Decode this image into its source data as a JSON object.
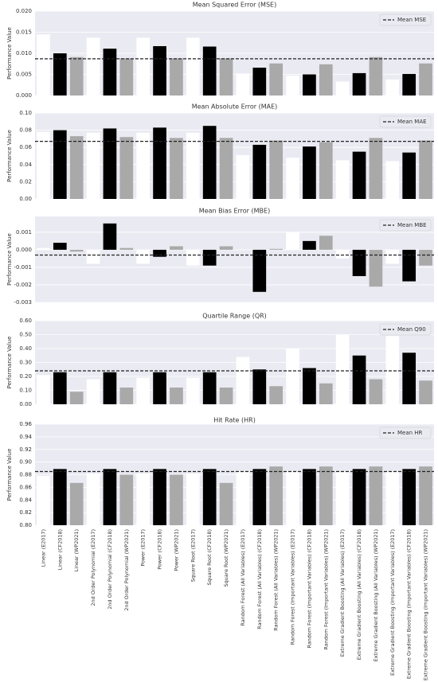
{
  "chart_data": [
    {
      "type": "bar",
      "title": "Mean Squared Error (MSE)",
      "ylabel": "Performance Value",
      "values": [
        0.0145,
        0.01,
        0.0091,
        0.0137,
        0.0111,
        0.0088,
        0.0137,
        0.0117,
        0.0088,
        0.0137,
        0.0116,
        0.0088,
        0.0052,
        0.0066,
        0.0076,
        0.0047,
        0.005,
        0.0074,
        0.0033,
        0.0053,
        0.0091,
        0.0038,
        0.0051,
        0.0076
      ],
      "colors": [
        "#ffffff",
        "#000000",
        "#a9a9a9",
        "#ffffff",
        "#000000",
        "#a9a9a9",
        "#ffffff",
        "#000000",
        "#a9a9a9",
        "#ffffff",
        "#000000",
        "#a9a9a9",
        "#ffffff",
        "#000000",
        "#a9a9a9",
        "#ffffff",
        "#000000",
        "#a9a9a9",
        "#ffffff",
        "#000000",
        "#a9a9a9",
        "#ffffff",
        "#000000",
        "#a9a9a9"
      ],
      "mean": 0.0087,
      "mean_label": "Mean MSE",
      "legend": "upper right",
      "grid": true,
      "ylim": [
        0,
        0.02
      ],
      "yticks": [
        {
          "value": 0,
          "label": "0.000"
        },
        {
          "value": 0.005,
          "label": "0.005"
        },
        {
          "value": 0.01,
          "label": "0.010"
        },
        {
          "value": 0.015,
          "label": "0.015"
        },
        {
          "value": 0.02,
          "label": "0.020"
        }
      ]
    },
    {
      "type": "bar",
      "title": "Mean Absolute Error (MAE)",
      "ylabel": "Performance Value",
      "values": [
        0.078,
        0.08,
        0.073,
        0.077,
        0.082,
        0.072,
        0.077,
        0.083,
        0.071,
        0.077,
        0.085,
        0.071,
        0.051,
        0.063,
        0.068,
        0.048,
        0.061,
        0.066,
        0.045,
        0.055,
        0.071,
        0.044,
        0.054,
        0.068
      ],
      "colors": [
        "#ffffff",
        "#000000",
        "#a9a9a9",
        "#ffffff",
        "#000000",
        "#a9a9a9",
        "#ffffff",
        "#000000",
        "#a9a9a9",
        "#ffffff",
        "#000000",
        "#a9a9a9",
        "#ffffff",
        "#000000",
        "#a9a9a9",
        "#ffffff",
        "#000000",
        "#a9a9a9",
        "#ffffff",
        "#000000",
        "#a9a9a9",
        "#ffffff",
        "#000000",
        "#a9a9a9"
      ],
      "mean": 0.067,
      "mean_label": "Mean MAE",
      "legend": "upper right",
      "grid": true,
      "ylim": [
        0,
        0.1
      ],
      "yticks": [
        {
          "value": 0,
          "label": "0.00"
        },
        {
          "value": 0.02,
          "label": "0.02"
        },
        {
          "value": 0.04,
          "label": "0.04"
        },
        {
          "value": 0.06,
          "label": "0.06"
        },
        {
          "value": 0.08,
          "label": "0.08"
        },
        {
          "value": 0.1,
          "label": "0.10"
        }
      ]
    },
    {
      "type": "bar",
      "title": "Mean Bias Error (MBE)",
      "ylabel": "Performance Value",
      "values": [
        0.0001,
        0.0004,
        -0.0001,
        -0.0008,
        0.0015,
        0.0001,
        -0.0008,
        -0.0004,
        0.0002,
        -0.0009,
        -0.0009,
        0.0002,
        0.0,
        -0.0024,
        5e-05,
        0.001,
        0.0005,
        0.0008,
        -0.0005,
        -0.0015,
        -0.0021,
        -0.0008,
        -0.0018,
        -0.0009
      ],
      "colors": [
        "#ffffff",
        "#000000",
        "#a9a9a9",
        "#ffffff",
        "#000000",
        "#a9a9a9",
        "#ffffff",
        "#000000",
        "#a9a9a9",
        "#ffffff",
        "#000000",
        "#a9a9a9",
        "#ffffff",
        "#000000",
        "#a9a9a9",
        "#ffffff",
        "#000000",
        "#a9a9a9",
        "#ffffff",
        "#000000",
        "#a9a9a9",
        "#ffffff",
        "#000000",
        "#a9a9a9"
      ],
      "mean": -0.0003,
      "mean_label": "Mean MBE",
      "legend": "upper right",
      "grid": true,
      "ylim": [
        -0.003,
        0.0019
      ],
      "yticks": [
        {
          "value": -0.003,
          "label": "-0.003"
        },
        {
          "value": -0.002,
          "label": "-0.002"
        },
        {
          "value": -0.001,
          "label": "-0.001"
        },
        {
          "value": 0,
          "label": "0.000"
        },
        {
          "value": 0.001,
          "label": "0.001"
        }
      ]
    },
    {
      "type": "bar",
      "title": "Quartile Range (QR)",
      "ylabel": "Performance Value",
      "values": [
        0.21,
        0.23,
        0.09,
        0.18,
        0.23,
        0.12,
        0.19,
        0.23,
        0.12,
        0.19,
        0.23,
        0.12,
        0.34,
        0.25,
        0.13,
        0.4,
        0.26,
        0.15,
        0.5,
        0.35,
        0.18,
        0.49,
        0.37,
        0.17
      ],
      "colors": [
        "#ffffff",
        "#000000",
        "#a9a9a9",
        "#ffffff",
        "#000000",
        "#a9a9a9",
        "#ffffff",
        "#000000",
        "#a9a9a9",
        "#ffffff",
        "#000000",
        "#a9a9a9",
        "#ffffff",
        "#000000",
        "#a9a9a9",
        "#ffffff",
        "#000000",
        "#a9a9a9",
        "#ffffff",
        "#000000",
        "#a9a9a9",
        "#ffffff",
        "#000000",
        "#a9a9a9"
      ],
      "mean": 0.24,
      "mean_label": "Mean Q90",
      "legend": "upper right",
      "grid": true,
      "ylim": [
        0,
        0.6
      ],
      "yticks": [
        {
          "value": 0,
          "label": "0.00"
        },
        {
          "value": 0.1,
          "label": "0.10"
        },
        {
          "value": 0.2,
          "label": "0.20"
        },
        {
          "value": 0.3,
          "label": "0.30"
        },
        {
          "value": 0.4,
          "label": "0.40"
        },
        {
          "value": 0.5,
          "label": "0.50"
        },
        {
          "value": 0.6,
          "label": "0.60"
        }
      ]
    },
    {
      "type": "bar",
      "title": "Hit Rate (HR)",
      "ylabel": "Performance Value",
      "categories": [
        "Linear (E2017)",
        "Linear (CF2018)",
        "Linear (WP2021)",
        "2nd Order Polynomial (E2017)",
        "2nd Order Polynomial (CF2018)",
        "2nd Order Polynomial (WP2021)",
        "Power (E2017)",
        "Power (CF2018)",
        "Power (WP2021)",
        "Square Root (E2017)",
        "Square Root (CF2018)",
        "Square Root (WP2021)",
        "Random Forest (All Variables) (E2017)",
        "Random Forest (All Variables) (CF2018)",
        "Random Forest (All Variables) (WP2021)",
        "Random Forest (Important Variables) (E2017)",
        "Random Forest (Important Variables) (CF2018)",
        "Random Forest (Important Variables) (WP2021)",
        "Extreme Gradient Boosting (All Variables) (E2017)",
        "Extreme Gradient Boosting (All Variables) (CF2018)",
        "Extreme Gradient Boosting (All Variables) (WP2021)",
        "Extreme Gradient Boosting (Important Variables) (E2017)",
        "Extreme Gradient Boosting (Important Variables) (CF2018)",
        "Extreme Gradient Boosting (Important Variables) (WP2021)"
      ],
      "values": [
        0.878,
        0.889,
        0.867,
        0.882,
        0.889,
        0.88,
        0.882,
        0.889,
        0.88,
        0.882,
        0.889,
        0.867,
        0.885,
        0.889,
        0.893,
        0.885,
        0.889,
        0.893,
        0.885,
        0.889,
        0.893,
        0.885,
        0.889,
        0.893
      ],
      "colors": [
        "#ffffff",
        "#000000",
        "#a9a9a9",
        "#ffffff",
        "#000000",
        "#a9a9a9",
        "#ffffff",
        "#000000",
        "#a9a9a9",
        "#ffffff",
        "#000000",
        "#a9a9a9",
        "#ffffff",
        "#000000",
        "#a9a9a9",
        "#ffffff",
        "#000000",
        "#a9a9a9",
        "#ffffff",
        "#000000",
        "#a9a9a9",
        "#ffffff",
        "#000000",
        "#a9a9a9"
      ],
      "mean": 0.885,
      "mean_label": "Mean HR",
      "legend": "upper right",
      "grid": true,
      "ylim": [
        0.8,
        0.96
      ],
      "yticks": [
        {
          "value": 0.8,
          "label": "0.80"
        },
        {
          "value": 0.82,
          "label": "0.82"
        },
        {
          "value": 0.84,
          "label": "0.84"
        },
        {
          "value": 0.86,
          "label": "0.86"
        },
        {
          "value": 0.88,
          "label": "0.88"
        },
        {
          "value": 0.9,
          "label": "0.90"
        },
        {
          "value": 0.92,
          "label": "0.92"
        },
        {
          "value": 0.94,
          "label": "0.94"
        },
        {
          "value": 0.96,
          "label": "0.96"
        }
      ]
    }
  ]
}
